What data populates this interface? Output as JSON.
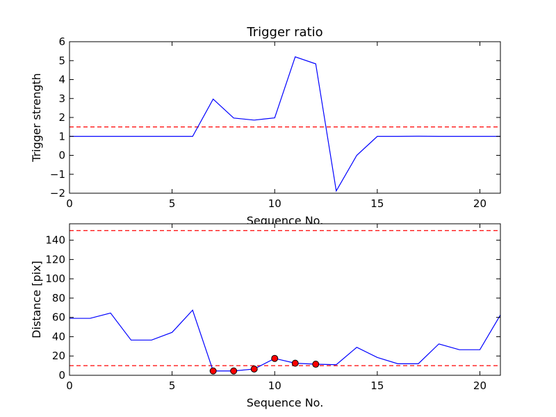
{
  "colors": {
    "line": "#0000ff",
    "threshold": "#ff0000",
    "marker_fill": "#ff0000",
    "marker_edge": "#000000",
    "axes": "#000000",
    "background": "#ffffff"
  },
  "chart_data": [
    {
      "type": "line",
      "title": "Trigger ratio",
      "xlabel": "Sequence No.",
      "ylabel": "Trigger strength",
      "xlim": [
        0,
        21
      ],
      "ylim": [
        -2,
        6
      ],
      "xticks": [
        0,
        5,
        10,
        15,
        20
      ],
      "yticks": [
        -2,
        -1,
        0,
        1,
        2,
        3,
        4,
        5,
        6
      ],
      "ytick_labels": [
        "−2",
        "−1",
        "0",
        "1",
        "2",
        "3",
        "4",
        "5",
        "6"
      ],
      "grid": false,
      "series": [
        {
          "x": [
            0,
            1,
            2,
            3,
            4,
            5,
            6,
            7,
            8,
            9,
            10,
            11,
            12,
            13,
            14,
            15,
            16,
            17,
            18,
            19,
            20,
            21
          ],
          "values": [
            1.0,
            1.0,
            1.0,
            1.0,
            1.0,
            1.0,
            1.0,
            2.97,
            1.97,
            1.86,
            1.98,
            5.2,
            4.83,
            -1.88,
            0.0,
            1.0,
            1.0,
            1.01,
            1.0,
            1.0,
            1.0,
            1.0
          ]
        }
      ],
      "hlines": [
        1.5
      ]
    },
    {
      "type": "line",
      "title": "",
      "xlabel": "Sequence No.",
      "ylabel": "Distance [pix]",
      "xlim": [
        0,
        21
      ],
      "ylim": [
        0,
        157
      ],
      "xticks": [
        0,
        5,
        10,
        15,
        20
      ],
      "yticks": [
        0,
        20,
        40,
        60,
        80,
        100,
        120,
        140
      ],
      "ytick_labels": [
        "0",
        "20",
        "40",
        "60",
        "80",
        "100",
        "120",
        "140"
      ],
      "grid": false,
      "series": [
        {
          "x": [
            0,
            1,
            2,
            3,
            4,
            5,
            6,
            7,
            8,
            9,
            10,
            11,
            12,
            13,
            14,
            15,
            16,
            17,
            18,
            19,
            20,
            21
          ],
          "values": [
            59,
            59,
            64.5,
            36.5,
            36.5,
            44.5,
            67.5,
            4.5,
            4.5,
            6.5,
            17.5,
            12.5,
            11.5,
            11.0,
            29.0,
            18.5,
            12.0,
            12.0,
            32.5,
            26.5,
            26.5,
            62.5
          ]
        }
      ],
      "markers": {
        "x": [
          7,
          8,
          9,
          10,
          11,
          12
        ],
        "y": [
          4.5,
          4.5,
          6.5,
          17.5,
          12.5,
          11.5
        ]
      },
      "hlines": [
        10,
        150
      ]
    }
  ]
}
